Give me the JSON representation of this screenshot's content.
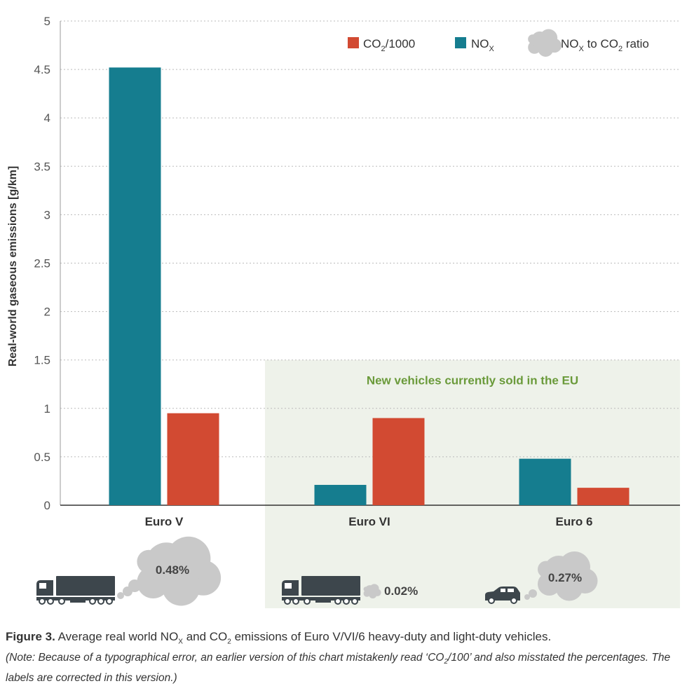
{
  "chart_data": {
    "type": "bar",
    "categories": [
      "Euro V",
      "Euro VI",
      "Euro 6"
    ],
    "series": [
      {
        "name": "NOx",
        "label_main": "NO",
        "label_sub": "X",
        "color": "#157d8f",
        "values": [
          4.52,
          0.21,
          0.48
        ]
      },
      {
        "name": "CO2/1000",
        "label_main": "CO",
        "label_sub": "2",
        "label_tail": "/1000",
        "color": "#d24a32",
        "values": [
          0.95,
          0.9,
          0.18
        ]
      }
    ],
    "ratio_legend": {
      "a_main": "NO",
      "a_sub": "X",
      "mid": " to CO",
      "b_sub": "2",
      "tail": " ratio"
    },
    "ratios": [
      "0.48%",
      "0.02%",
      "0.27%"
    ],
    "ylim": [
      0,
      5
    ],
    "yticks": [
      "0",
      "0.5",
      "1",
      "1.5",
      "2",
      "2.5",
      "3",
      "3.5",
      "4",
      "4.5",
      "5"
    ],
    "ylabel": "Real-world gaseous emissions [g/km]",
    "highlight_region": {
      "label": "New vehicles currently sold in the EU",
      "from_category": 1,
      "to_category": 2,
      "top_value": 1.5
    }
  },
  "caption": {
    "figure_label": "Figure 3.",
    "p1": " Average real world NO",
    "s1": "X",
    "p2": " and CO",
    "s2": "2",
    "p3": " emissions of Euro V/VI/6 heavy-duty and light-duty vehicles.",
    "n1": "(Note: Because of a typographical error, an earlier version of this chart mistakenly read ‘CO",
    "n2": "2",
    "n3": "/100’ and also misstated the percentages. The labels are corrected in this version.)"
  },
  "colors": {
    "nox": "#157d8f",
    "co2": "#d24a32",
    "region": "#eef2ea",
    "cloud": "#c9c9c9",
    "vehicle": "#3d464c",
    "region_text": "#6a9a3a"
  }
}
